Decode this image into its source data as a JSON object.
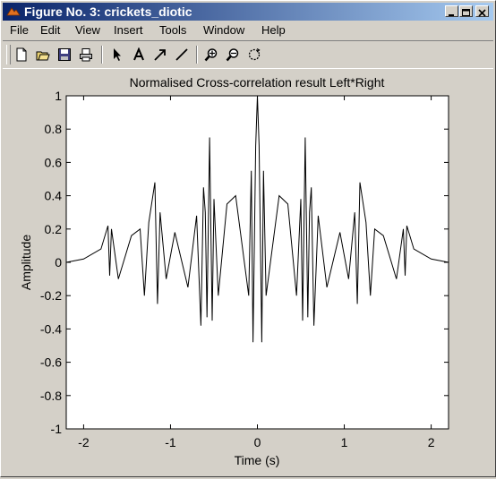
{
  "window": {
    "title": "Figure No. 3: crickets_diotic",
    "controls": [
      "minimize",
      "maximize",
      "close"
    ]
  },
  "menu": {
    "items": [
      "File",
      "Edit",
      "View",
      "Insert",
      "Tools",
      "Window",
      "Help"
    ]
  },
  "toolbar": {
    "buttons": [
      "new-file-icon",
      "open-folder-icon",
      "save-disk-icon",
      "print-icon",
      "select-arrow-icon",
      "insert-text-icon",
      "insert-arrow-icon",
      "insert-line-icon",
      "zoom-in-icon",
      "zoom-out-icon",
      "rotate-3d-icon"
    ]
  },
  "colors": {
    "title_gradient_start": "#0a246a",
    "title_gradient_end": "#a6caf0",
    "window_face": "#d4d0c8",
    "plot_background": "#ffffff",
    "trace": "#000000"
  },
  "chart_data": {
    "type": "line",
    "title": "Normalised Cross-correlation result Left*Right",
    "xlabel": "Time (s)",
    "ylabel": "Amplitude",
    "xlim": [
      -2.2,
      2.2
    ],
    "ylim": [
      -1,
      1
    ],
    "xticks": [
      -2,
      -1,
      0,
      1,
      2
    ],
    "yticks": [
      -1,
      -0.8,
      -0.6,
      -0.4,
      -0.2,
      0,
      0.2,
      0.4,
      0.6,
      0.8,
      1
    ],
    "xtick_labels": [
      "-2",
      "-1",
      "0",
      "1",
      "2"
    ],
    "ytick_labels": [
      "-1",
      "-0.8",
      "-0.6",
      "-0.4",
      "-0.2",
      "0",
      "0.2",
      "0.4",
      "0.6",
      "0.8",
      "1"
    ],
    "grid": false,
    "series": [
      {
        "x": [
          -2.2,
          -2.0,
          -1.8,
          -1.72,
          -1.7,
          -1.68,
          -1.6,
          -1.45,
          -1.35,
          -1.3,
          -1.25,
          -1.18,
          -1.15,
          -1.12,
          -1.05,
          -0.95,
          -0.8,
          -0.7,
          -0.65,
          -0.62,
          -0.6,
          -0.58,
          -0.55,
          -0.52,
          -0.5,
          -0.45,
          -0.35,
          -0.25,
          -0.1,
          -0.07,
          -0.05,
          -0.02,
          0,
          0.02,
          0.05,
          0.07,
          0.1,
          0.25,
          0.35,
          0.45,
          0.5,
          0.52,
          0.55,
          0.58,
          0.6,
          0.62,
          0.65,
          0.7,
          0.8,
          0.95,
          1.05,
          1.12,
          1.15,
          1.18,
          1.25,
          1.3,
          1.35,
          1.45,
          1.6,
          1.68,
          1.7,
          1.72,
          1.8,
          2.0,
          2.2
        ],
        "y": [
          0,
          0.02,
          0.08,
          0.22,
          -0.08,
          0.2,
          -0.1,
          0.16,
          0.2,
          -0.2,
          0.24,
          0.48,
          -0.25,
          0.3,
          -0.1,
          0.18,
          -0.15,
          0.28,
          -0.38,
          0.45,
          0.3,
          -0.33,
          0.75,
          -0.35,
          0.38,
          -0.2,
          0.35,
          0.4,
          -0.2,
          0.55,
          -0.48,
          0.7,
          1.0,
          0.7,
          -0.48,
          0.55,
          -0.2,
          0.4,
          0.35,
          -0.2,
          0.38,
          -0.35,
          0.75,
          -0.33,
          0.3,
          0.45,
          -0.38,
          0.28,
          -0.15,
          0.18,
          -0.1,
          0.3,
          -0.25,
          0.48,
          0.24,
          -0.2,
          0.2,
          0.16,
          -0.1,
          0.2,
          -0.08,
          0.22,
          0.08,
          0.02,
          0
        ]
      }
    ]
  }
}
